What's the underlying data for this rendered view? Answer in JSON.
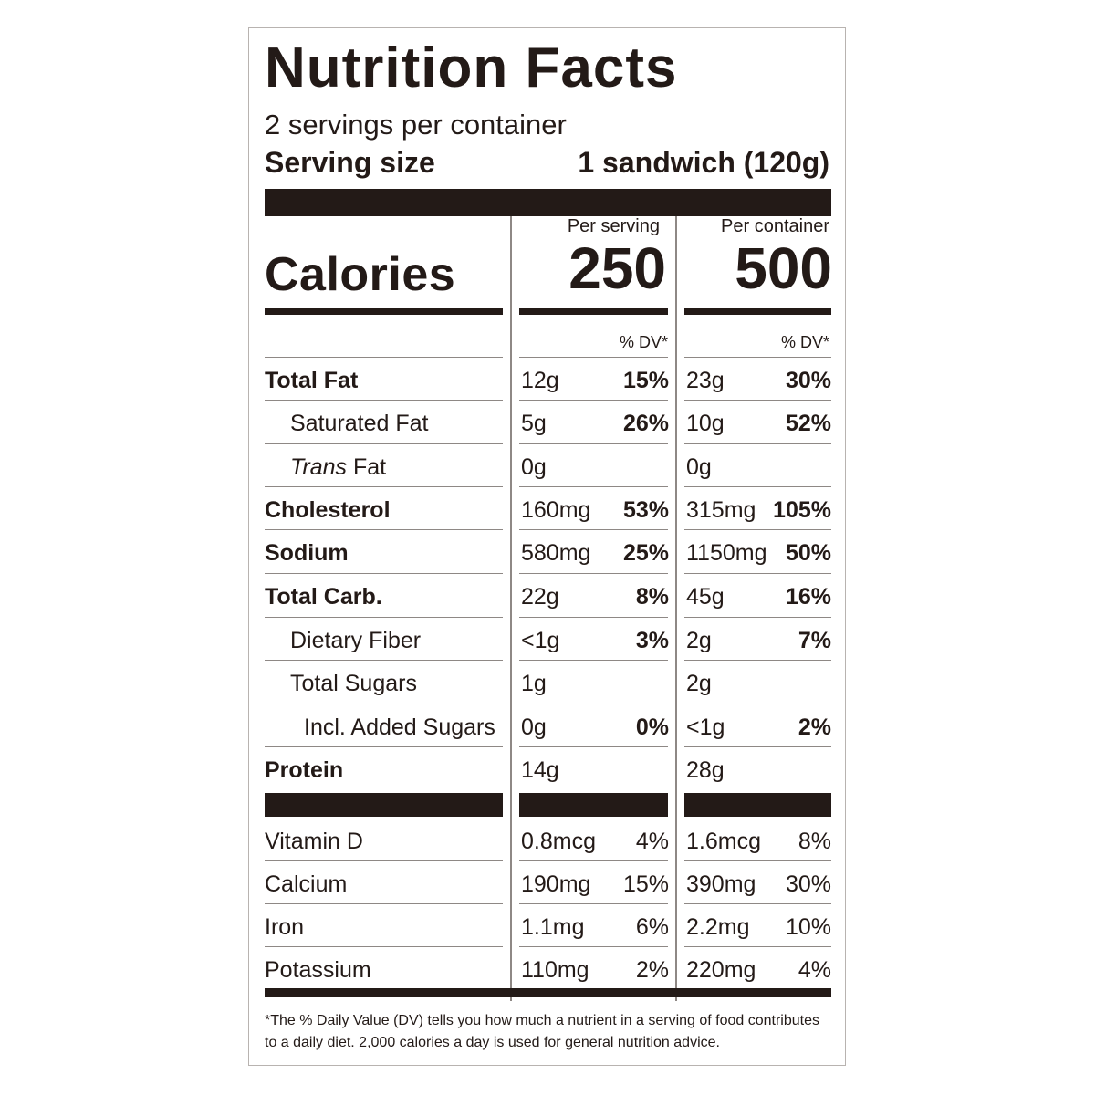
{
  "panel": {
    "title": "Nutrition Facts",
    "servings": "2 servings per container",
    "serving_size_label": "Serving size",
    "serving_size_value": "1 sandwich (120g)",
    "per_serving": "Per serving",
    "per_container": "Per container",
    "calories_label": "Calories",
    "calories_serving": "250",
    "calories_container": "500",
    "dv_label": "% DV*"
  },
  "nutrients": [
    {
      "name": "Total Fat",
      "serving_amount": "12g",
      "serving_dv": "15%",
      "container_amount": "23g",
      "container_dv": "30%"
    },
    {
      "name": "Saturated Fat",
      "serving_amount": "5g",
      "serving_dv": "26%",
      "container_amount": "10g",
      "container_dv": "52%"
    },
    {
      "name_italic": "Trans",
      "name": " Fat",
      "serving_amount": "0g",
      "serving_dv": "",
      "container_amount": "0g",
      "container_dv": ""
    },
    {
      "name": "Cholesterol",
      "serving_amount": "160mg",
      "serving_dv": "53%",
      "container_amount": "315mg",
      "container_dv": "105%"
    },
    {
      "name": "Sodium",
      "serving_amount": "580mg",
      "serving_dv": "25%",
      "container_amount": "1150mg",
      "container_dv": "50%"
    },
    {
      "name": "Total Carb.",
      "serving_amount": "22g",
      "serving_dv": "8%",
      "container_amount": "45g",
      "container_dv": "16%"
    },
    {
      "name": "Dietary Fiber",
      "serving_amount": "<1g",
      "serving_dv": "3%",
      "container_amount": "2g",
      "container_dv": "7%"
    },
    {
      "name": "Total Sugars",
      "serving_amount": "1g",
      "serving_dv": "",
      "container_amount": "2g",
      "container_dv": ""
    },
    {
      "name": "Incl. Added Sugars",
      "serving_amount": "0g",
      "serving_dv": "0%",
      "container_amount": "<1g",
      "container_dv": "2%"
    },
    {
      "name": "Protein",
      "serving_amount": "14g",
      "serving_dv": "",
      "container_amount": "28g",
      "container_dv": ""
    }
  ],
  "vitamins": [
    {
      "name": "Vitamin D",
      "serving_amount": "0.8mcg",
      "serving_dv": "4%",
      "container_amount": "1.6mcg",
      "container_dv": "8%"
    },
    {
      "name": "Calcium",
      "serving_amount": "190mg",
      "serving_dv": "15%",
      "container_amount": "390mg",
      "container_dv": "30%"
    },
    {
      "name": "Iron",
      "serving_amount": "1.1mg",
      "serving_dv": "6%",
      "container_amount": "2.2mg",
      "container_dv": "10%"
    },
    {
      "name": "Potassium",
      "serving_amount": "110mg",
      "serving_dv": "2%",
      "container_amount": "220mg",
      "container_dv": "4%"
    }
  ],
  "footnote": "*The % Daily Value (DV) tells you how much a nutrient in a serving of food contributes to a daily diet. 2,000 calories a day is used for general nutrition advice."
}
